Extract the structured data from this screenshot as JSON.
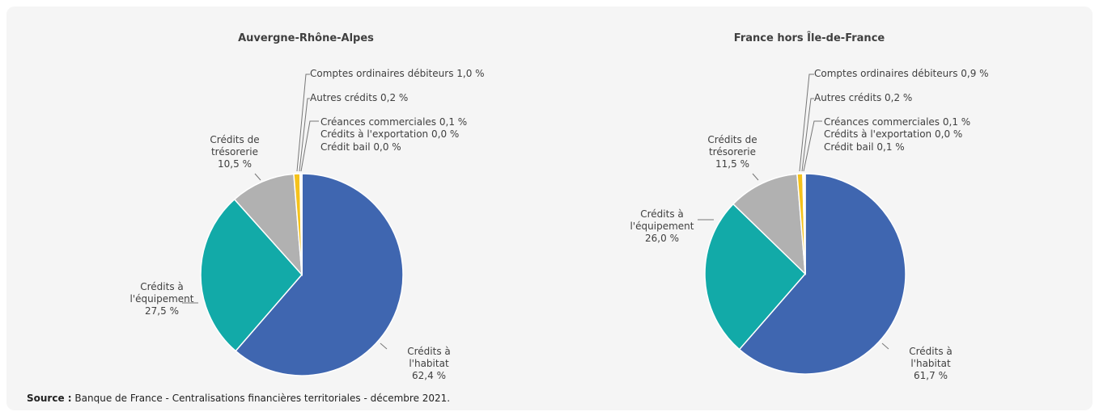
{
  "chart_data": [
    {
      "type": "pie",
      "title": "Auvergne-Rhône-Alpes",
      "categories": [
        "Crédits à l'habitat",
        "Crédits à l'équipement",
        "Crédits de trésorerie",
        "Comptes ordinaires débiteurs",
        "Autres crédits",
        "Créances commerciales",
        "Crédits à l'exportation",
        "Crédit bail"
      ],
      "values": [
        62.4,
        27.5,
        10.5,
        1.0,
        0.2,
        0.1,
        0.0,
        0.0
      ],
      "value_labels": [
        "62,4 %",
        "27,5 %",
        "10,5 %",
        "1,0 %",
        "0,2 %",
        "0,1 %",
        "0,0 %",
        "0,0 %"
      ],
      "colors": [
        "#3f66b0",
        "#12aaa8",
        "#b1b1b1",
        "#f5c21b",
        "#c8c8c8",
        "#dcdcdc",
        "#e6e6e6",
        "#d0d0d0"
      ]
    },
    {
      "type": "pie",
      "title": "France hors Île-de-France",
      "categories": [
        "Crédits à l'habitat",
        "Crédits à l'équipement",
        "Crédits de trésorerie",
        "Comptes ordinaires débiteurs",
        "Autres crédits",
        "Créances commerciales",
        "Crédits à l'exportation",
        "Crédit bail"
      ],
      "values": [
        61.7,
        26.0,
        11.5,
        0.9,
        0.2,
        0.1,
        0.0,
        0.1
      ],
      "value_labels": [
        "61,7 %",
        "26,0 %",
        "11,5 %",
        "0,9 %",
        "0,2 %",
        "0,1 %",
        "0,0 %",
        "0,1 %"
      ],
      "colors": [
        "#3f66b0",
        "#12aaa8",
        "#b1b1b1",
        "#f5c21b",
        "#c8c8c8",
        "#dcdcdc",
        "#e6e6e6",
        "#d0d0d0"
      ]
    }
  ],
  "source": {
    "label": "Source :",
    "text": "Banque de France - Centralisations financières territoriales - décembre 2021."
  }
}
